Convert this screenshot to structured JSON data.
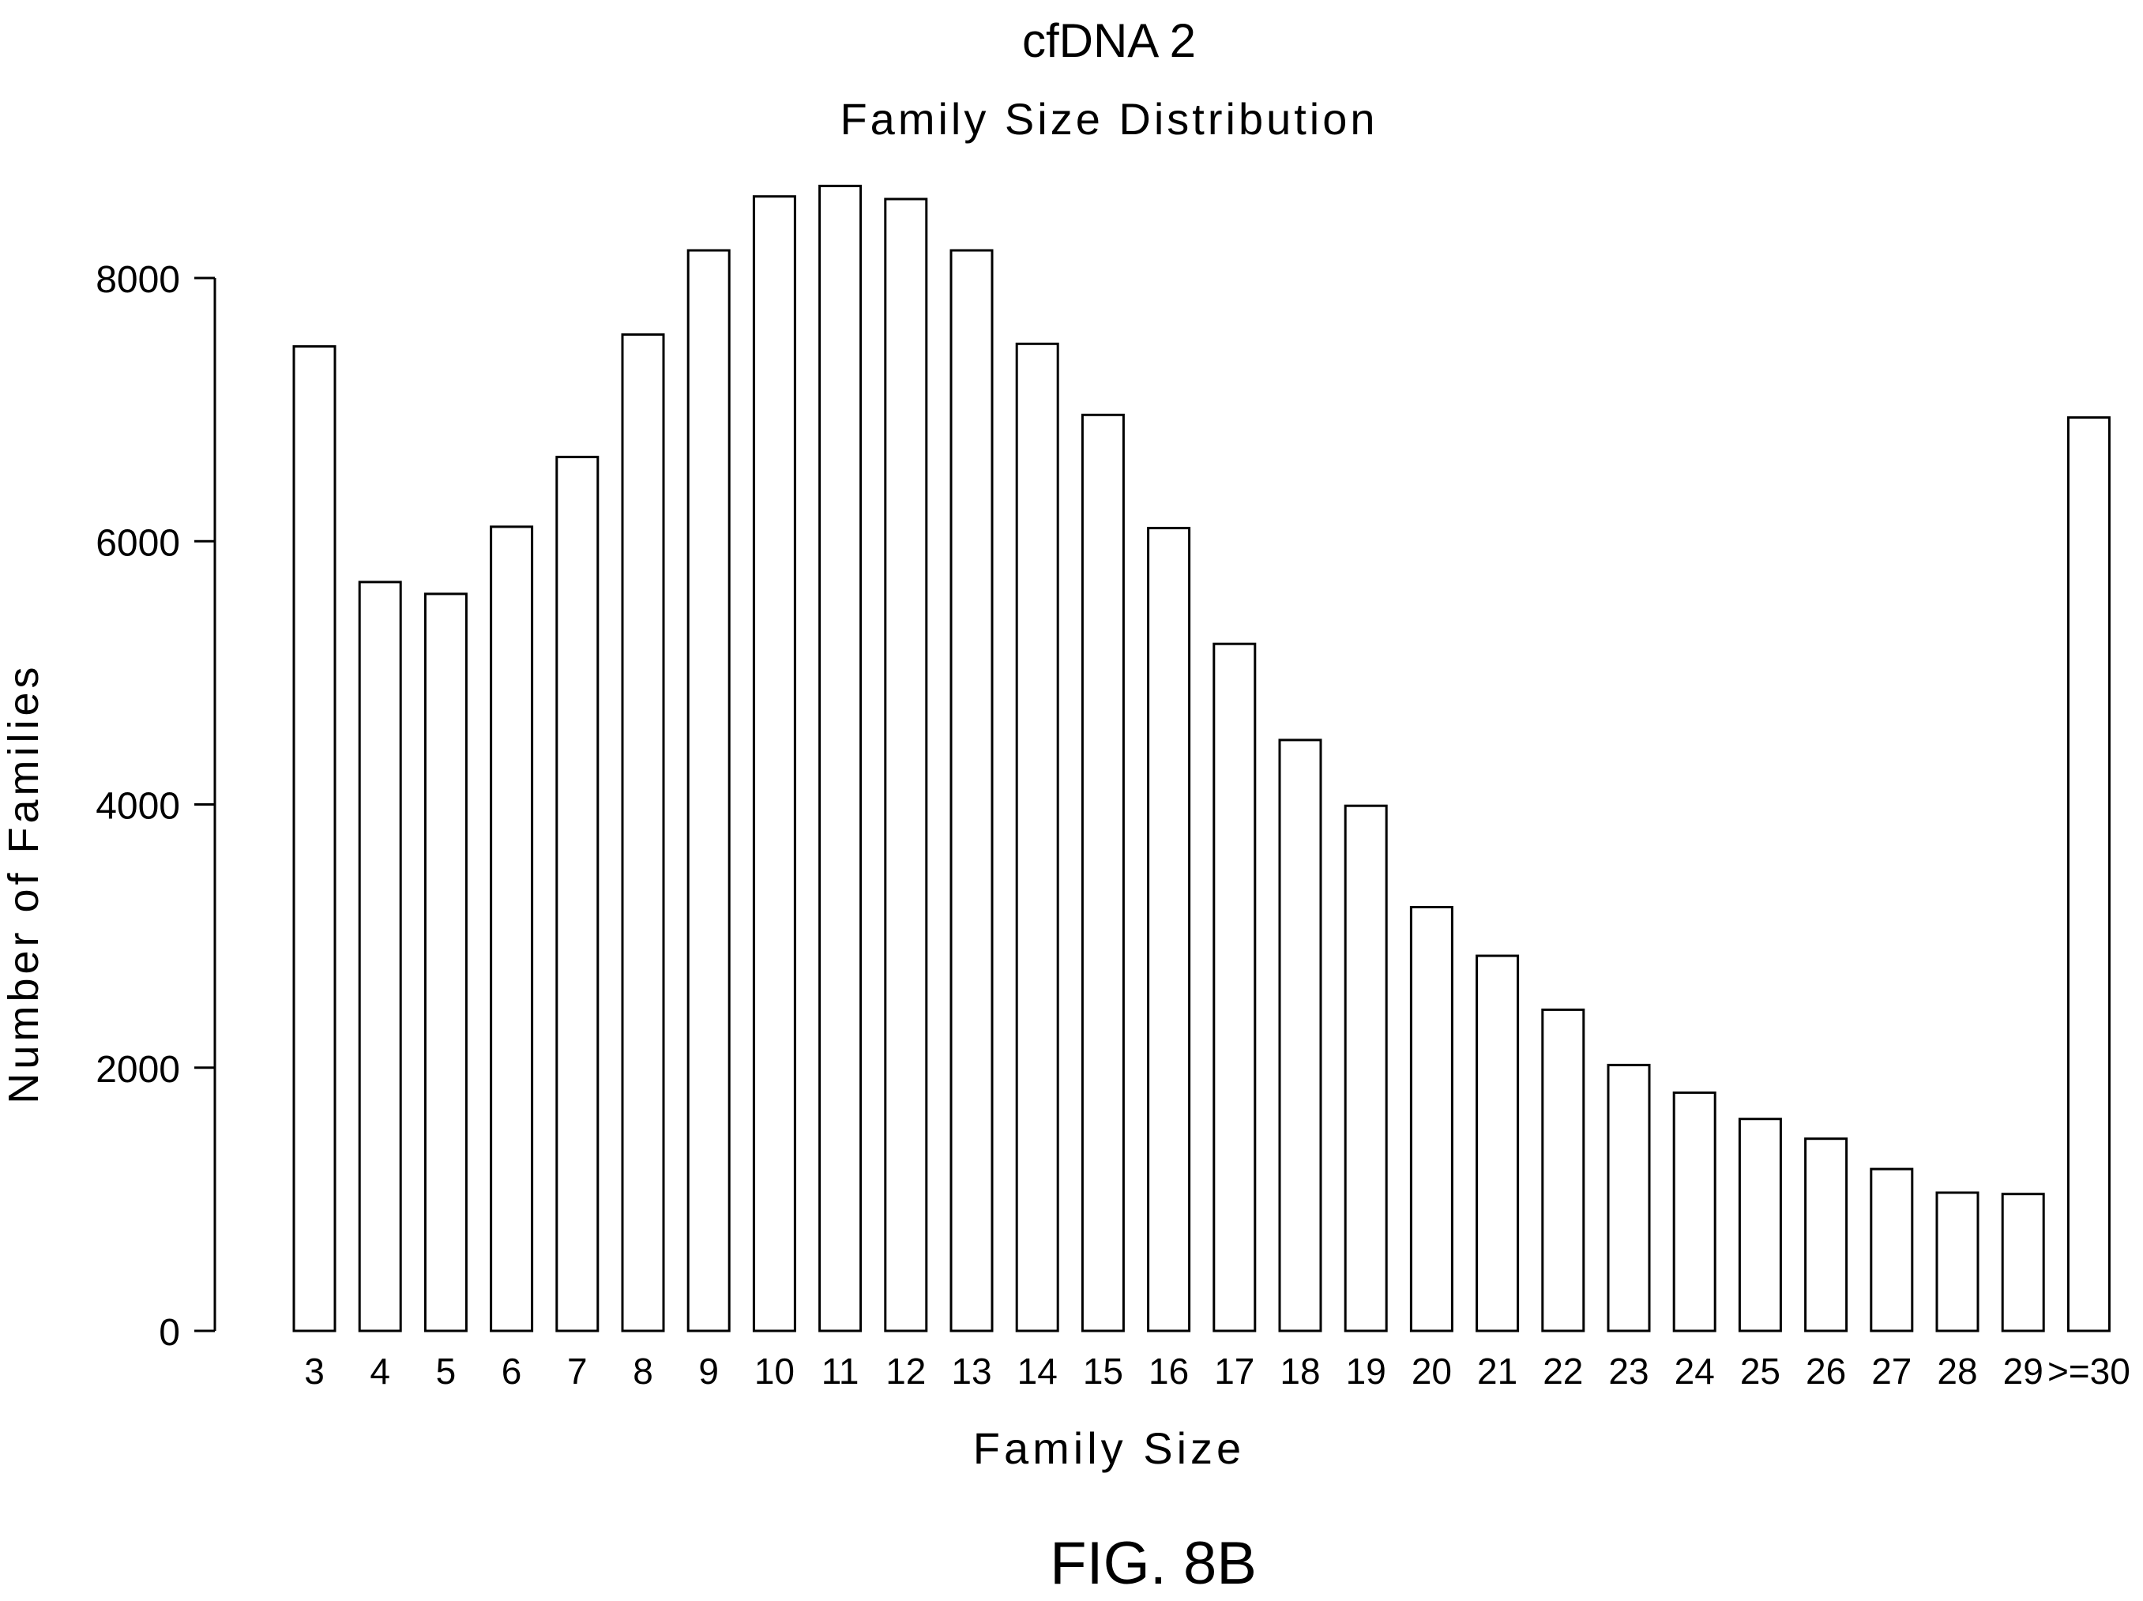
{
  "chart_data": {
    "type": "bar",
    "title": "cfDNA 2",
    "subtitle": "Family Size Distribution",
    "xlabel": "Family Size",
    "ylabel": "Number of Families",
    "categories": [
      "3",
      "4",
      "5",
      "6",
      "7",
      "8",
      "9",
      "10",
      "11",
      "12",
      "13",
      "14",
      "15",
      "16",
      "17",
      "18",
      "19",
      "20",
      "21",
      "22",
      "23",
      "24",
      "25",
      "26",
      "27",
      "28",
      "29",
      ">=30"
    ],
    "values": [
      7480,
      5690,
      5600,
      6110,
      6640,
      7570,
      8210,
      8620,
      8700,
      8600,
      8210,
      7500,
      6960,
      6100,
      5220,
      4490,
      3990,
      3220,
      2850,
      2440,
      2020,
      1810,
      1610,
      1460,
      1230,
      1050,
      1040,
      6940
    ],
    "yticks": [
      0,
      2000,
      4000,
      6000,
      8000
    ],
    "ylim": [
      0,
      8700
    ],
    "bar_fill": "#ffffff",
    "bar_stroke": "#000000",
    "grid": false,
    "legend": "none"
  },
  "caption": "FIG. 8B"
}
